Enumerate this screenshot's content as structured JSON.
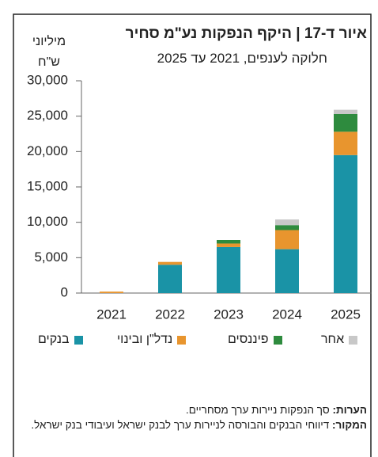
{
  "chart_data": {
    "type": "stacked_bar",
    "title": "איור ד-17 | היקף הנפקות נע\"מ סחיר",
    "subtitle": "חלוקה לענפים, 2021 עד 2025",
    "ylabel": [
      "מיליוני",
      "ש\"ח"
    ],
    "categories": [
      "2021",
      "2022",
      "2023",
      "2024",
      "2025"
    ],
    "series": [
      {
        "name": "בנקים",
        "color": "#1a93a6",
        "values": [
          0,
          4000,
          6500,
          6200,
          19500
        ]
      },
      {
        "name": "נדל\"ן ובינוי",
        "color": "#e8952e",
        "values": [
          200,
          400,
          500,
          2700,
          3300
        ]
      },
      {
        "name": "פיננסים",
        "color": "#2e8b3e",
        "values": [
          0,
          0,
          500,
          700,
          2500
        ]
      },
      {
        "name": "אחר",
        "color": "#c8c8c8",
        "values": [
          0,
          0,
          0,
          800,
          600
        ]
      }
    ],
    "ylim": [
      0,
      30000
    ],
    "yticks": [
      0,
      {
        "value": 5000,
        "label": "5,000"
      },
      {
        "value": 10000,
        "label": "10,000"
      },
      {
        "value": 15000,
        "label": "15,000"
      },
      {
        "value": 20000,
        "label": "20,000"
      },
      {
        "value": 25000,
        "label": "25,000"
      },
      {
        "value": 30000,
        "label": "30,000"
      }
    ],
    "notes": {
      "label": "הערות:",
      "text": "סך הנפקות ניירות ערך מסחריים."
    },
    "source": {
      "label": "המקור:",
      "text": "דיווחי הבנקים והבורסה לניירות ערך לבנק ישראל ועיבודי בנק ישראל."
    }
  }
}
